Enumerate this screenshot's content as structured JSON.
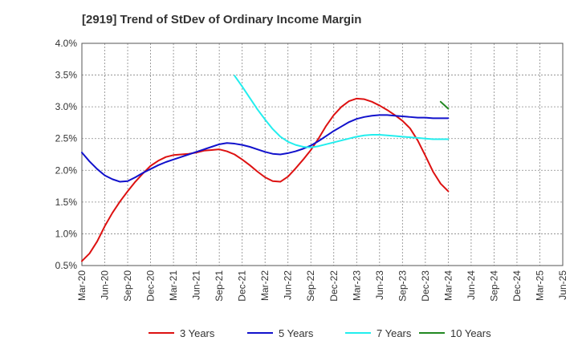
{
  "chart_data": {
    "type": "line",
    "title": "[2919]  Trend of StDev of Ordinary Income Margin",
    "x_labels": [
      "Mar-20",
      "Jun-20",
      "Sep-20",
      "Dec-20",
      "Mar-21",
      "Jun-21",
      "Sep-21",
      "Dec-21",
      "Mar-22",
      "Jun-22",
      "Sep-22",
      "Dec-22",
      "Mar-23",
      "Jun-23",
      "Sep-23",
      "Dec-23",
      "Mar-24",
      "Jun-24",
      "Sep-24",
      "Dec-24",
      "Mar-25",
      "Jun-25"
    ],
    "y_ticks": [
      "0.5%",
      "1.0%",
      "1.5%",
      "2.0%",
      "2.5%",
      "3.0%",
      "3.5%",
      "4.0%"
    ],
    "ylim": [
      0.5,
      4.0
    ],
    "y_unit": "%",
    "grid": true,
    "legend_position": "bottom",
    "series": [
      {
        "name": "3 Years",
        "color": "#dd1111",
        "start_index": 0,
        "values": [
          0.57,
          0.69,
          0.88,
          1.12,
          1.33,
          1.51,
          1.67,
          1.82,
          1.95,
          2.07,
          2.15,
          2.21,
          2.24,
          2.25,
          2.26,
          2.28,
          2.31,
          2.32,
          2.33,
          2.3,
          2.25,
          2.17,
          2.08,
          1.98,
          1.89,
          1.83,
          1.82,
          1.9,
          2.03,
          2.17,
          2.32,
          2.5,
          2.7,
          2.87,
          3.0,
          3.09,
          3.13,
          3.12,
          3.08,
          3.02,
          2.95,
          2.87,
          2.78,
          2.66,
          2.47,
          2.23,
          1.98,
          1.79,
          1.67
        ]
      },
      {
        "name": "5 Years",
        "color": "#1111cc",
        "start_index": 0,
        "values": [
          2.28,
          2.14,
          2.02,
          1.92,
          1.86,
          1.82,
          1.83,
          1.89,
          1.96,
          2.02,
          2.08,
          2.13,
          2.17,
          2.21,
          2.25,
          2.29,
          2.33,
          2.37,
          2.41,
          2.43,
          2.42,
          2.4,
          2.37,
          2.33,
          2.29,
          2.26,
          2.25,
          2.27,
          2.3,
          2.34,
          2.39,
          2.46,
          2.54,
          2.62,
          2.69,
          2.76,
          2.81,
          2.84,
          2.86,
          2.87,
          2.87,
          2.86,
          2.85,
          2.84,
          2.83,
          2.83,
          2.82,
          2.82,
          2.82
        ]
      },
      {
        "name": "7 Years",
        "color": "#22eeee",
        "start_index": 20,
        "values": [
          3.49,
          3.32,
          3.14,
          2.96,
          2.8,
          2.65,
          2.53,
          2.45,
          2.4,
          2.37,
          2.36,
          2.38,
          2.41,
          2.44,
          2.47,
          2.5,
          2.53,
          2.55,
          2.56,
          2.56,
          2.55,
          2.54,
          2.53,
          2.52,
          2.51,
          2.5,
          2.49,
          2.49,
          2.49
        ]
      },
      {
        "name": "10 Years",
        "color": "#228822",
        "start_index": 47,
        "values": [
          3.08,
          2.97
        ]
      }
    ]
  }
}
